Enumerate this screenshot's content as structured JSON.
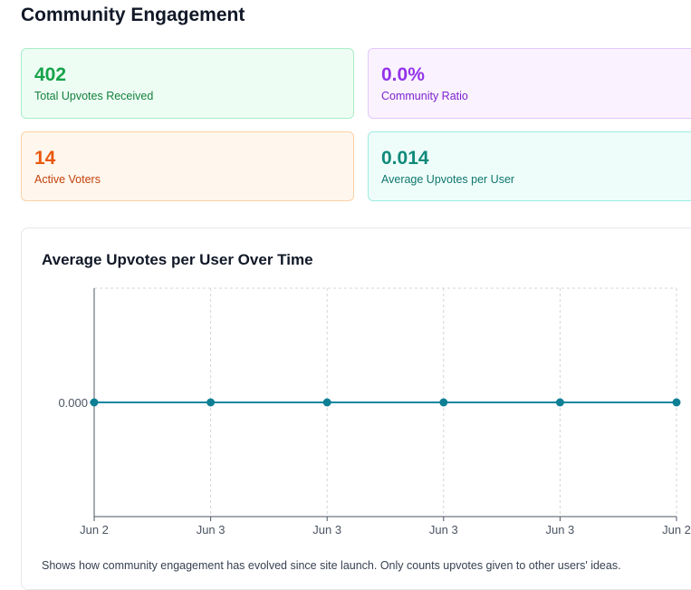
{
  "page_title": "Community Engagement",
  "stats": {
    "total_upvotes": {
      "value": "402",
      "label": "Total Upvotes Received"
    },
    "community_ratio": {
      "value": "0.0%",
      "label": "Community Ratio"
    },
    "active_voters": {
      "value": "14",
      "label": "Active Voters"
    },
    "avg_upvotes": {
      "value": "0.014",
      "label": "Average Upvotes per User"
    }
  },
  "chart_footnote": "Shows how community engagement has evolved since site launch. Only counts upvotes given to other users' ideas.",
  "colors": {
    "line": "#0e86a0",
    "point": "#0e7f95",
    "grid": "#d1d5db"
  },
  "chart_data": {
    "type": "line",
    "title": "Average Upvotes per User Over Time",
    "xlabel": "",
    "ylabel": "",
    "categories": [
      "Jun 2",
      "Jun 3",
      "Jun 3",
      "Jun 3",
      "Jun 3",
      "Jun 2"
    ],
    "series": [
      {
        "values": [
          0,
          0,
          0,
          0,
          0,
          0
        ]
      }
    ],
    "y_ticks": [
      "0.000"
    ],
    "grid": true
  }
}
